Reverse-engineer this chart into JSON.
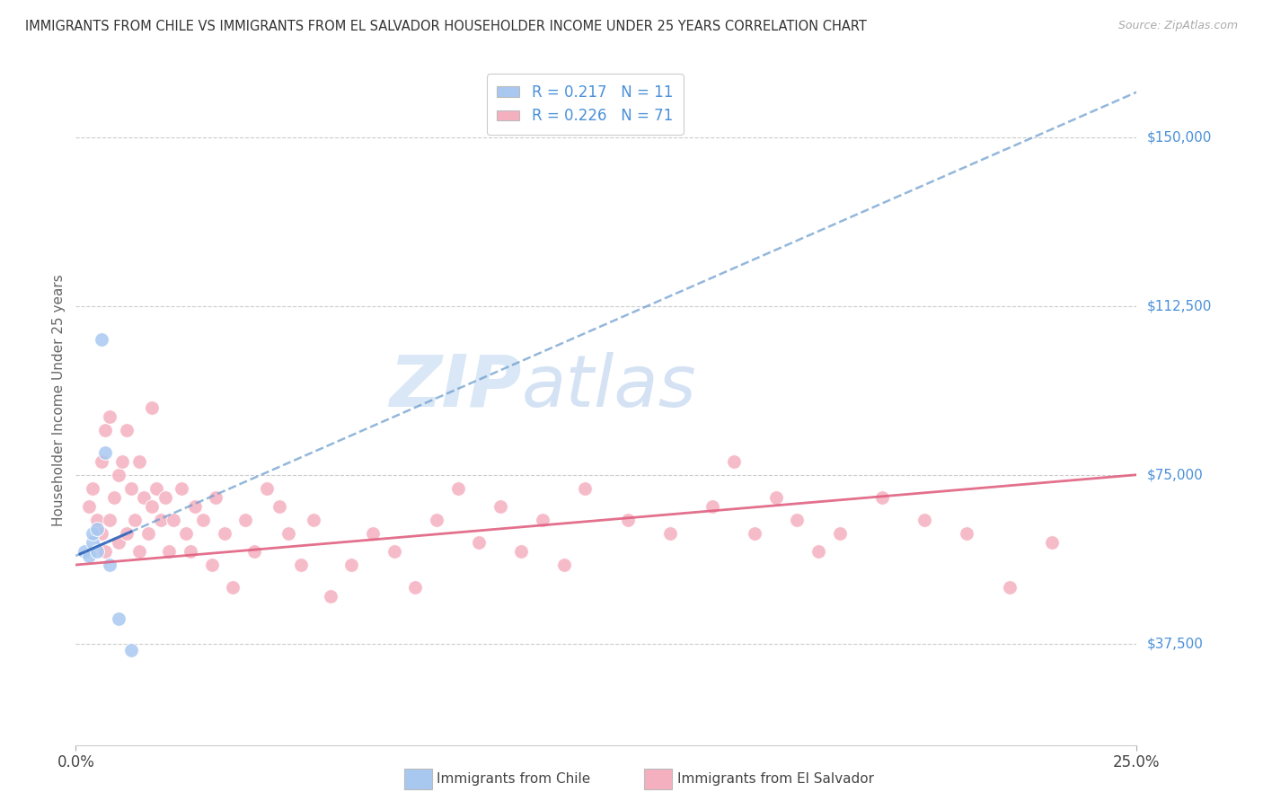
{
  "title": "IMMIGRANTS FROM CHILE VS IMMIGRANTS FROM EL SALVADOR HOUSEHOLDER INCOME UNDER 25 YEARS CORRELATION CHART",
  "source": "Source: ZipAtlas.com",
  "ylabel": "Householder Income Under 25 years",
  "ytick_labels": [
    "$37,500",
    "$75,000",
    "$112,500",
    "$150,000"
  ],
  "ytick_values": [
    37500,
    75000,
    112500,
    150000
  ],
  "xmin": 0.0,
  "xmax": 0.25,
  "ymin": 15000,
  "ymax": 168000,
  "chile_R": 0.217,
  "chile_N": 11,
  "elsalvador_R": 0.226,
  "elsalvador_N": 71,
  "chile_color": "#a8c8f0",
  "elsalvador_color": "#f5b0c0",
  "chile_line_color": "#6699cc",
  "elsalvador_line_color": "#e06080",
  "legend_label_chile": "Immigrants from Chile",
  "legend_label_elsalvador": "Immigrants from El Salvador",
  "watermark_zip": "ZIP",
  "watermark_atlas": "atlas",
  "chile_x": [
    0.002,
    0.003,
    0.004,
    0.004,
    0.005,
    0.005,
    0.006,
    0.007,
    0.008,
    0.01,
    0.013
  ],
  "chile_y": [
    58000,
    57000,
    60000,
    62000,
    63000,
    58000,
    105000,
    80000,
    55000,
    43000,
    36000
  ],
  "elsalvador_x": [
    0.003,
    0.004,
    0.005,
    0.006,
    0.006,
    0.007,
    0.007,
    0.008,
    0.008,
    0.009,
    0.01,
    0.01,
    0.011,
    0.012,
    0.012,
    0.013,
    0.014,
    0.015,
    0.015,
    0.016,
    0.017,
    0.018,
    0.018,
    0.019,
    0.02,
    0.021,
    0.022,
    0.023,
    0.025,
    0.026,
    0.027,
    0.028,
    0.03,
    0.032,
    0.033,
    0.035,
    0.037,
    0.04,
    0.042,
    0.045,
    0.048,
    0.05,
    0.053,
    0.056,
    0.06,
    0.065,
    0.07,
    0.075,
    0.08,
    0.085,
    0.09,
    0.095,
    0.1,
    0.105,
    0.11,
    0.115,
    0.12,
    0.13,
    0.14,
    0.15,
    0.155,
    0.16,
    0.165,
    0.17,
    0.175,
    0.18,
    0.19,
    0.2,
    0.21,
    0.22,
    0.23
  ],
  "elsalvador_y": [
    68000,
    72000,
    65000,
    78000,
    62000,
    85000,
    58000,
    88000,
    65000,
    70000,
    75000,
    60000,
    78000,
    85000,
    62000,
    72000,
    65000,
    78000,
    58000,
    70000,
    62000,
    90000,
    68000,
    72000,
    65000,
    70000,
    58000,
    65000,
    72000,
    62000,
    58000,
    68000,
    65000,
    55000,
    70000,
    62000,
    50000,
    65000,
    58000,
    72000,
    68000,
    62000,
    55000,
    65000,
    48000,
    55000,
    62000,
    58000,
    50000,
    65000,
    72000,
    60000,
    68000,
    58000,
    65000,
    55000,
    72000,
    65000,
    62000,
    68000,
    78000,
    62000,
    70000,
    65000,
    58000,
    62000,
    70000,
    65000,
    62000,
    50000,
    60000
  ]
}
